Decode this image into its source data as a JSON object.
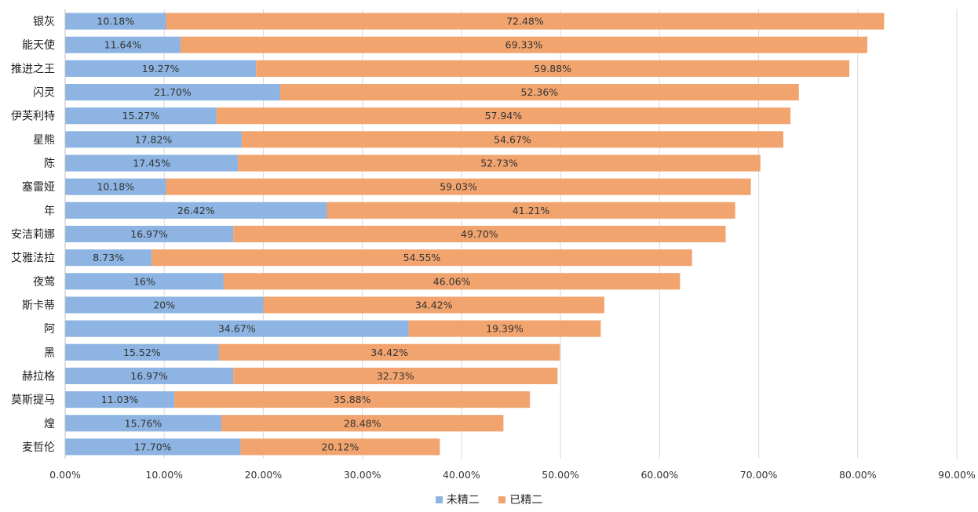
{
  "chart_data": {
    "type": "bar",
    "orientation": "horizontal",
    "stacked": true,
    "categories": [
      "银灰",
      "能天使",
      "推进之王",
      "闪灵",
      "伊芙利特",
      "星熊",
      "陈",
      "塞雷娅",
      "年",
      "安洁莉娜",
      "艾雅法拉",
      "夜莺",
      "斯卡蒂",
      "阿",
      "黑",
      "赫拉格",
      "莫斯提马",
      "煌",
      "麦哲伦"
    ],
    "series": [
      {
        "name": "未精二",
        "color": "#8db4e2",
        "values": [
          10.18,
          11.64,
          19.27,
          21.7,
          15.27,
          17.82,
          17.45,
          10.18,
          26.42,
          16.97,
          8.73,
          16,
          20,
          34.67,
          15.52,
          16.97,
          11.03,
          15.76,
          17.7
        ],
        "labels": [
          "10.18%",
          "11.64%",
          "19.27%",
          "21.70%",
          "15.27%",
          "17.82%",
          "17.45%",
          "10.18%",
          "26.42%",
          "16.97%",
          "8.73%",
          "16%",
          "20%",
          "34.67%",
          "15.52%",
          "16.97%",
          "11.03%",
          "15.76%",
          "17.70%"
        ]
      },
      {
        "name": "已精二",
        "color": "#f2a46e",
        "values": [
          72.48,
          69.33,
          59.88,
          52.36,
          57.94,
          54.67,
          52.73,
          59.03,
          41.21,
          49.7,
          54.55,
          46.06,
          34.42,
          19.39,
          34.42,
          32.73,
          35.88,
          28.48,
          20.12
        ],
        "labels": [
          "72.48%",
          "69.33%",
          "59.88%",
          "52.36%",
          "57.94%",
          "54.67%",
          "52.73%",
          "59.03%",
          "41.21%",
          "49.70%",
          "54.55%",
          "46.06%",
          "34.42%",
          "19.39%",
          "34.42%",
          "32.73%",
          "35.88%",
          "28.48%",
          "20.12%"
        ]
      }
    ],
    "xlim": [
      0,
      90
    ],
    "x_ticks": [
      "0.00%",
      "10.00%",
      "20.00%",
      "30.00%",
      "40.00%",
      "50.00%",
      "60.00%",
      "70.00%",
      "80.00%",
      "90.00%"
    ],
    "grid": true,
    "legend_position": "bottom"
  },
  "colors": {
    "grid": "#d9d9d9",
    "axis": "#bfbfbf"
  }
}
